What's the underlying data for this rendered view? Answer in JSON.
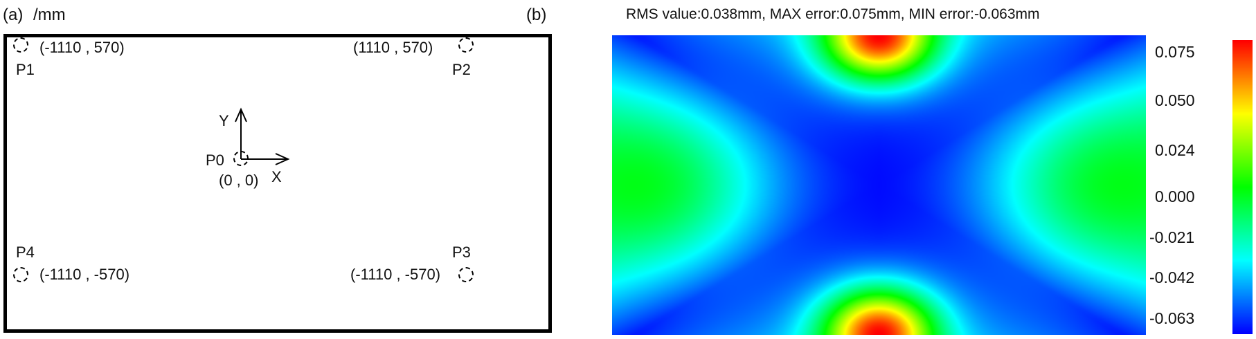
{
  "panel_a": {
    "label": "(a)",
    "unit": "/mm",
    "points": [
      {
        "name": "P1",
        "coords": "(-1110 , 570)"
      },
      {
        "name": "P2",
        "coords": "(1110 , 570)"
      },
      {
        "name": "P3",
        "coords": "(-1110 , -570)"
      },
      {
        "name": "P4",
        "coords": "(-1110 , -570)"
      },
      {
        "name": "P0",
        "coords": "(0 , 0)"
      }
    ],
    "axis_x": "X",
    "axis_y": "Y"
  },
  "panel_b": {
    "label": "(b)",
    "title": "RMS value:0.038mm, MAX error:0.075mm, MIN error:-0.063mm"
  },
  "chart_data": {
    "type": "heatmap",
    "title": "RMS value:0.038mm, MAX error:0.075mm, MIN error:-0.063mm",
    "colorbar": {
      "min": -0.063,
      "max": 0.075,
      "ticks": [
        "0.075",
        "0.050",
        "0.024",
        "0.000",
        "-0.021",
        "-0.042",
        "-0.063"
      ],
      "tick_values": [
        0.075,
        0.05,
        0.024,
        0.0,
        -0.021,
        -0.042,
        -0.063
      ],
      "colormap": [
        "#0000ff",
        "#00ffff",
        "#00ff00",
        "#ffff00",
        "#ff0000"
      ]
    },
    "features": {
      "max_at": "top-center and bottom-center edges",
      "min_at": "center and corners",
      "local_high": "left-center and right-center"
    }
  }
}
